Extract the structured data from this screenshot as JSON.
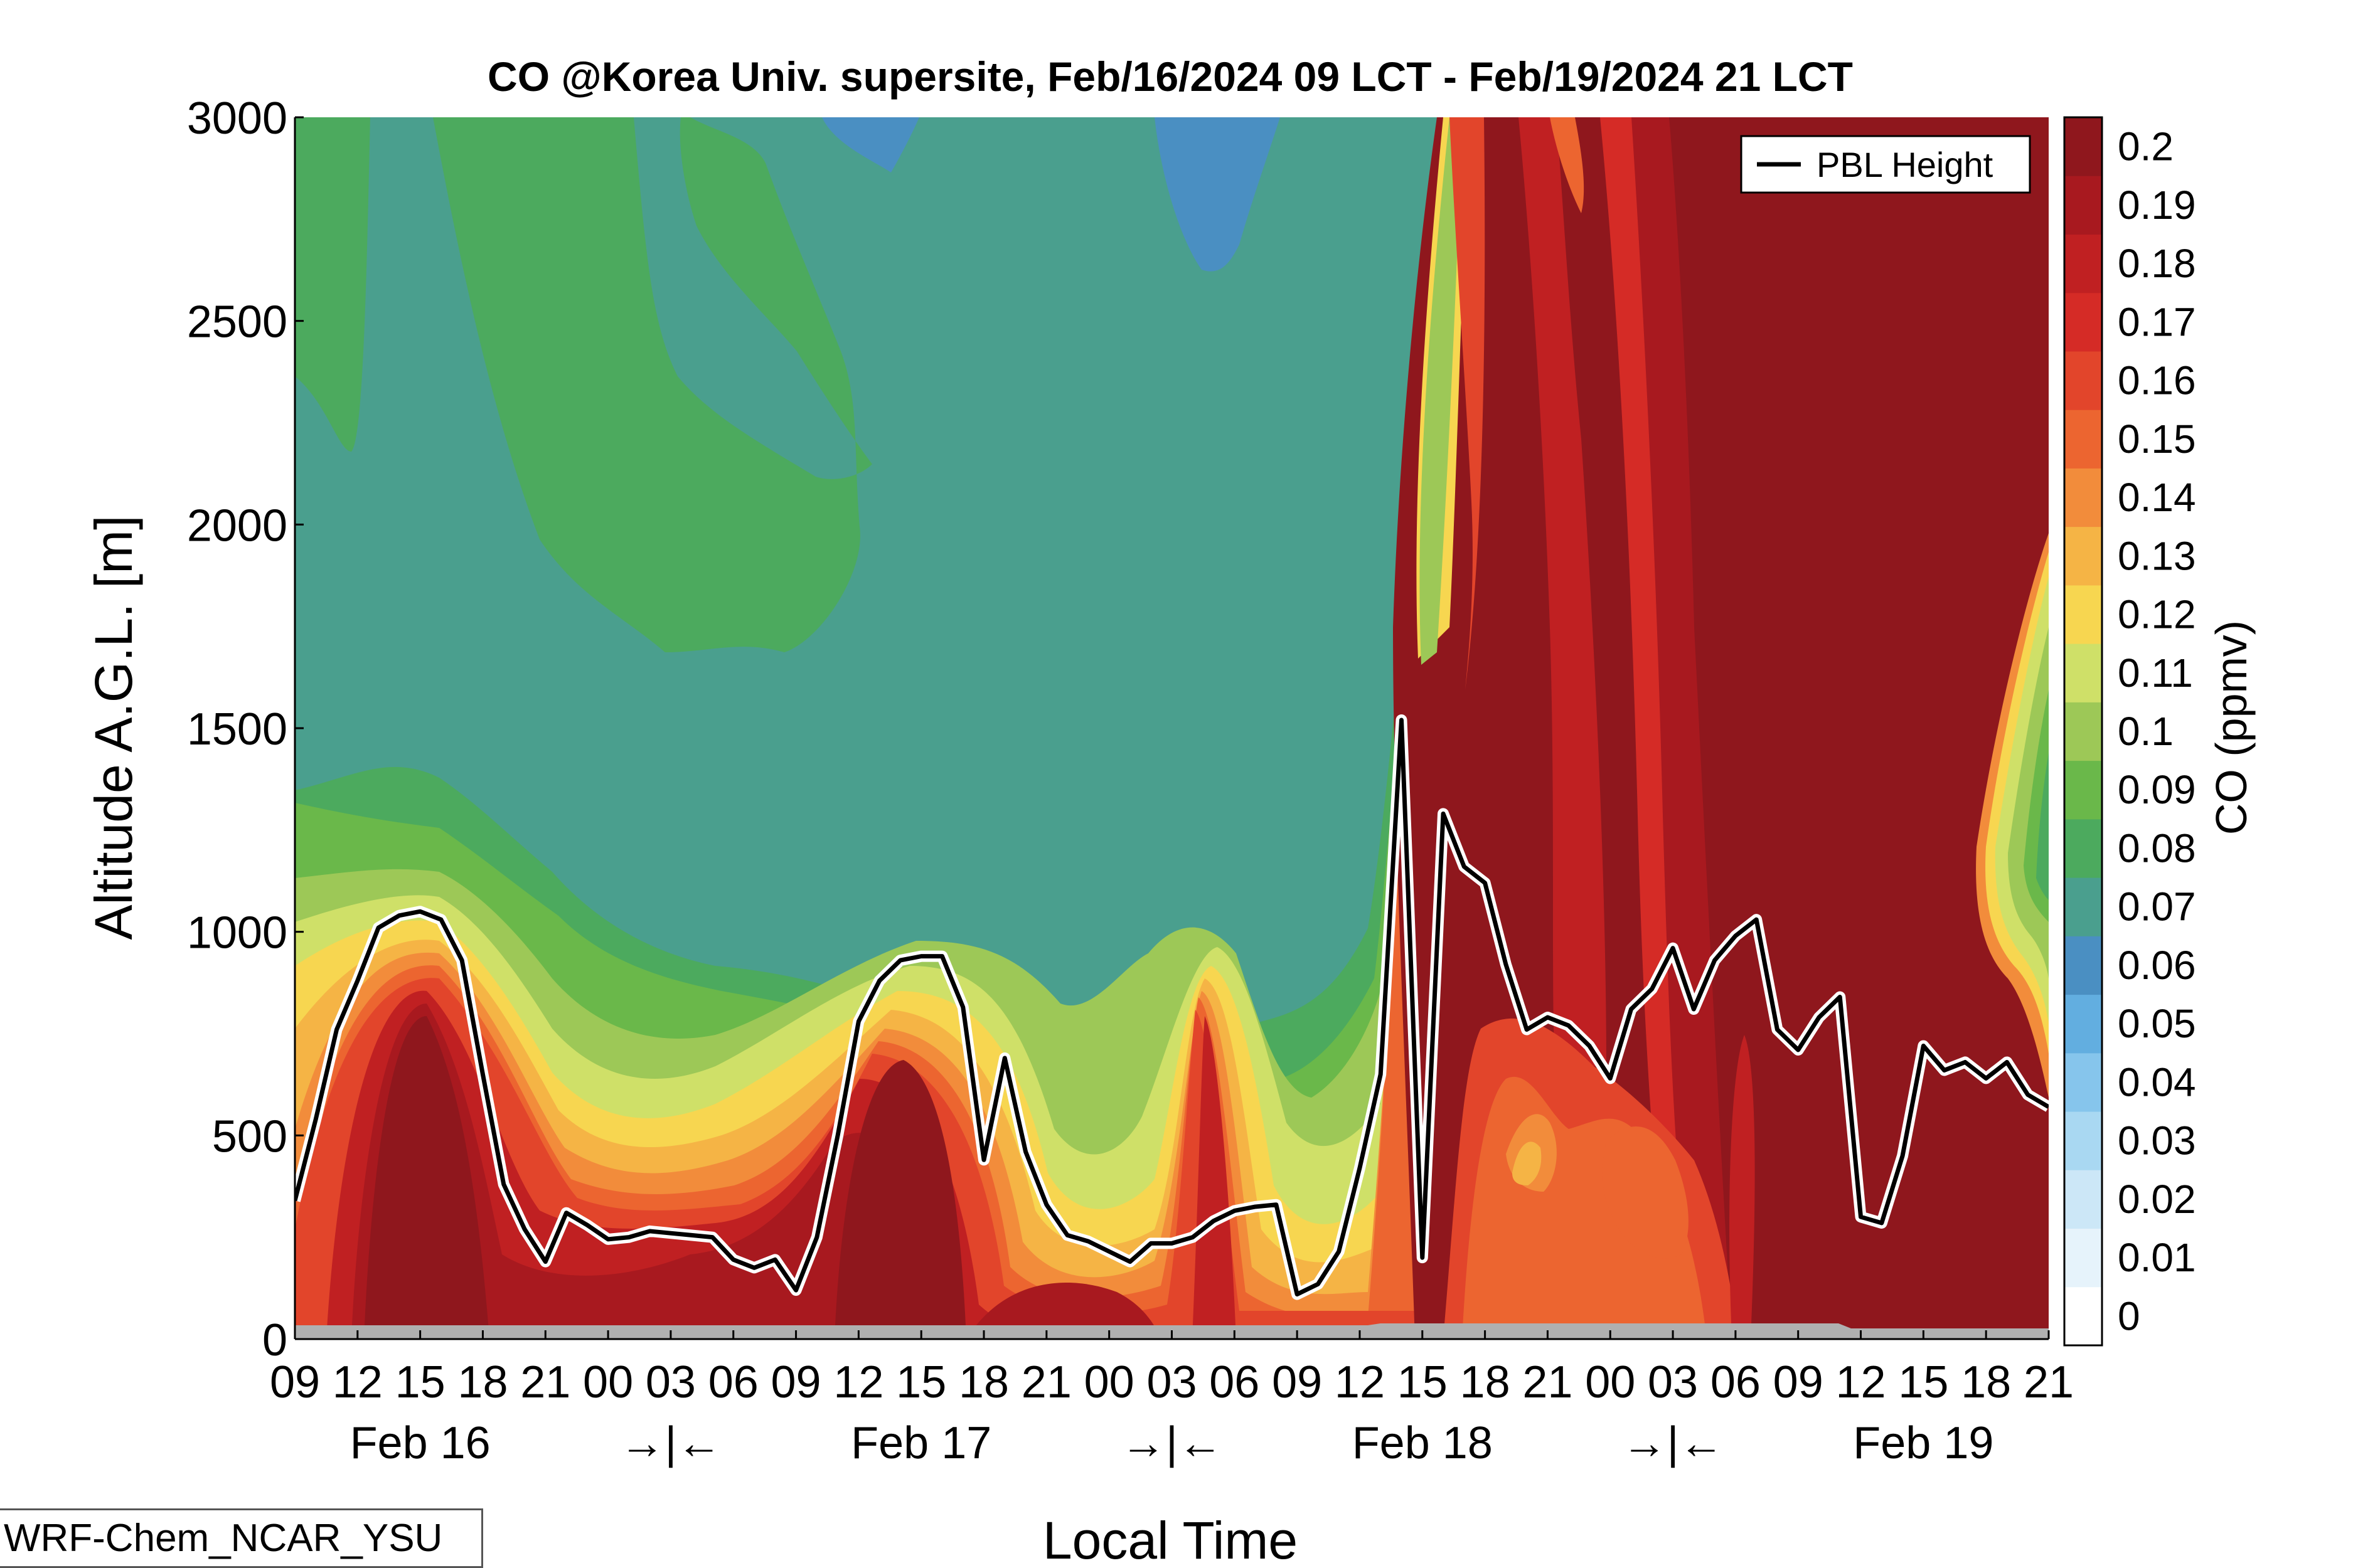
{
  "chart_data": {
    "type": "heatmap",
    "title": "CO @Korea Univ. supersite, Feb/16/2024 09 LCT - Feb/19/2024 21 LCT",
    "xlabel": "Local Time",
    "ylabel": "Altitude A.G.L. [m]",
    "ylim": [
      0,
      3000
    ],
    "y_ticks": [
      "0",
      "500",
      "1000",
      "1500",
      "2000",
      "2500",
      "3000"
    ],
    "x_hour_labels": [
      "09",
      "12",
      "15",
      "18",
      "21",
      "00",
      "03",
      "06",
      "09",
      "12",
      "15",
      "18",
      "21",
      "00",
      "03",
      "06",
      "09",
      "12",
      "15",
      "18",
      "21",
      "00",
      "03",
      "06",
      "09",
      "12",
      "15",
      "18",
      "21"
    ],
    "x_day_labels": [
      "Feb 16",
      "→|←",
      "Feb 17",
      "→|←",
      "Feb 18",
      "→|←",
      "Feb 19"
    ],
    "colorbar": {
      "label": "CO (ppmv)",
      "ticks": [
        "0",
        "0.01",
        "0.02",
        "0.03",
        "0.04",
        "0.05",
        "0.06",
        "0.07",
        "0.08",
        "0.09",
        "0.1",
        "0.11",
        "0.12",
        "0.13",
        "0.14",
        "0.15",
        "0.16",
        "0.17",
        "0.18",
        "0.19",
        "0.2"
      ],
      "colors": [
        "#ffffff",
        "#e6f3fb",
        "#cce7f7",
        "#a9d8f2",
        "#86c5ec",
        "#62aee0",
        "#4a8fc2",
        "#4a9f8e",
        "#4caa5e",
        "#6ab84a",
        "#9dc857",
        "#cfe068",
        "#f7d650",
        "#f5b445",
        "#f28c3b",
        "#ec6530",
        "#e2452b",
        "#d52b26",
        "#c02022",
        "#a8191f",
        "#8f171d"
      ]
    },
    "legend": {
      "entries": [
        "PBL Height"
      ],
      "position": "top-right"
    },
    "series": [
      {
        "name": "PBL Height",
        "x_hours_from_start": [
          0,
          1,
          2,
          3,
          4,
          5,
          6,
          7,
          8,
          9,
          10,
          11,
          12,
          13,
          14,
          15,
          16,
          17,
          18,
          19,
          20,
          21,
          22,
          23,
          24,
          25,
          26,
          27,
          28,
          29,
          30,
          31,
          32,
          33,
          34,
          35,
          36,
          37,
          38,
          39,
          40,
          41,
          42,
          43,
          44,
          45,
          46,
          47,
          48,
          49,
          50,
          51,
          52,
          53,
          54,
          55,
          56,
          57,
          58,
          59,
          60,
          61,
          62,
          63,
          64,
          65,
          66,
          67,
          68,
          69,
          70,
          71,
          72,
          73,
          74,
          75,
          76,
          77,
          78,
          79,
          80,
          81,
          82,
          83,
          84
        ],
        "values": [
          340,
          540,
          760,
          880,
          1010,
          1040,
          1050,
          1030,
          930,
          650,
          380,
          270,
          190,
          310,
          280,
          245,
          250,
          265,
          260,
          255,
          250,
          195,
          175,
          195,
          120,
          250,
          500,
          780,
          880,
          930,
          940,
          940,
          815,
          440,
          690,
          460,
          330,
          255,
          240,
          215,
          190,
          235,
          235,
          250,
          290,
          315,
          325,
          330,
          110,
          135,
          215,
          420,
          650,
          1520,
          200,
          1290,
          1160,
          1120,
          920,
          760,
          790,
          770,
          720,
          640,
          810,
          860,
          960,
          810,
          930,
          990,
          1030,
          760,
          710,
          790,
          840,
          300,
          285,
          450,
          720,
          660,
          680,
          640,
          680,
          600,
          570
        ]
      }
    ]
  },
  "source_label": "WRF-Chem_NCAR_YSU",
  "colors": {
    "pbl_line": "#000000",
    "pbl_halo": "#ffffff",
    "ground": "#b0b0b0"
  }
}
